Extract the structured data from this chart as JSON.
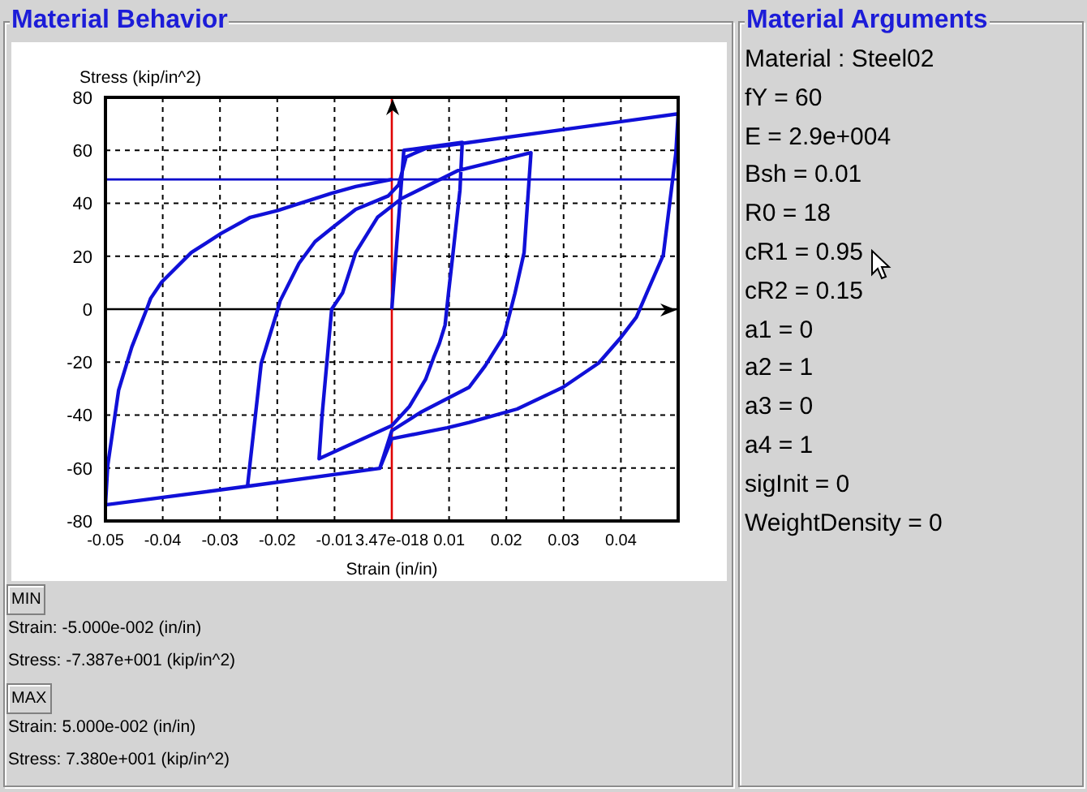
{
  "chart_data": {
    "type": "line",
    "title": "Material Behavior",
    "xlabel": "Strain (in/in)",
    "ylabel": "Stress (kip/in^2)",
    "xlim": [
      -0.05,
      0.05
    ],
    "ylim": [
      -80,
      80
    ],
    "xticks": [
      -0.05,
      -0.04,
      -0.03,
      -0.02,
      -0.01,
      {
        "value": 0,
        "label": "3.47e-018"
      },
      0.01,
      0.02,
      0.03,
      0.04
    ],
    "yticks": [
      -80,
      -60,
      -40,
      -20,
      0,
      20,
      40,
      60,
      80
    ],
    "grid": true,
    "marker": "none",
    "series": [
      {
        "color": "#1010d8",
        "x": [
          0,
          0.0021,
          0.0123,
          0.0119,
          0.0107,
          0.0099,
          0.0093,
          0.0083,
          0.0073,
          0.0059,
          0.0031,
          0,
          -0.0127,
          -0.0122,
          -0.0105,
          -0.0086,
          -0.0063,
          -0.0025,
          0.0017,
          0.0116,
          0.0243,
          0.0231,
          0.0215,
          0.0196,
          0.0163,
          0.0135,
          0.005,
          0,
          -0.0021,
          -0.0252,
          -0.0228,
          -0.0199,
          -0.0195,
          -0.0162,
          -0.0134,
          -0.0105,
          -0.0063,
          -0.0006,
          0.0012,
          0.0025,
          0.006,
          0.0123,
          0.05,
          0.0496,
          0.0488,
          0.0474,
          0.0445,
          0.0427,
          0.0398,
          0.0361,
          0.0299,
          0.0219,
          0.0135,
          0.0097,
          0,
          -0.0021,
          -0.0252,
          -0.05,
          -0.0496,
          -0.0477,
          -0.0454,
          -0.0428,
          -0.0421,
          -0.0402,
          -0.035,
          -0.0298,
          -0.0247,
          -0.0199,
          -0.0105,
          -0.0063,
          0
        ],
        "values": [
          0,
          60,
          63,
          45,
          21.4,
          6.1,
          -6,
          -13,
          -18.3,
          -26.5,
          -36.7,
          -44,
          -56.5,
          -40.8,
          0,
          6.1,
          21.4,
          34.7,
          41.8,
          52.4,
          59.1,
          21.4,
          6,
          -10,
          -21.4,
          -29.5,
          -39,
          -45.9,
          -60.1,
          -66.9,
          -20.4,
          0,
          3.1,
          17.3,
          25.5,
          30.6,
          37.7,
          42.8,
          47,
          57.5,
          60.8,
          62.6,
          73.8,
          59,
          44.8,
          20.4,
          6,
          -3,
          -11.2,
          -20.4,
          -29.5,
          -37.7,
          -42.8,
          -44.8,
          -48.9,
          -60.1,
          -66.9,
          -73.9,
          -59,
          -30.6,
          -14.3,
          0,
          4.1,
          10.2,
          21.4,
          28.6,
          34.7,
          37.3,
          43.8,
          46.3,
          49
        ]
      }
    ],
    "ref_lines": [
      {
        "axis": "y",
        "value": 0,
        "color": "#000000"
      },
      {
        "axis": "x",
        "value": 0,
        "color": "#e00000"
      },
      {
        "axis": "y",
        "value": 49,
        "color": "#0000cc"
      }
    ],
    "annotations": [
      "MIN",
      "Strain: -5.000e-002 (in/in)",
      "Stress: -7.387e+001 (kip/in^2)",
      "MAX",
      "Strain: 5.000e-002 (in/in)",
      "Stress: 7.380e+001 (kip/in^2)",
      "Material Arguments",
      "Material : Steel02",
      "fY = 60",
      "E = 2.9e+004",
      "Bsh = 0.01",
      "R0 = 18",
      "cR1 = 0.95",
      "cR2 = 0.15",
      "a1 = 0",
      "a2 = 1",
      "a3 = 0",
      "a4 = 1",
      "sigInit = 0",
      "WeightDensity = 0"
    ]
  }
}
